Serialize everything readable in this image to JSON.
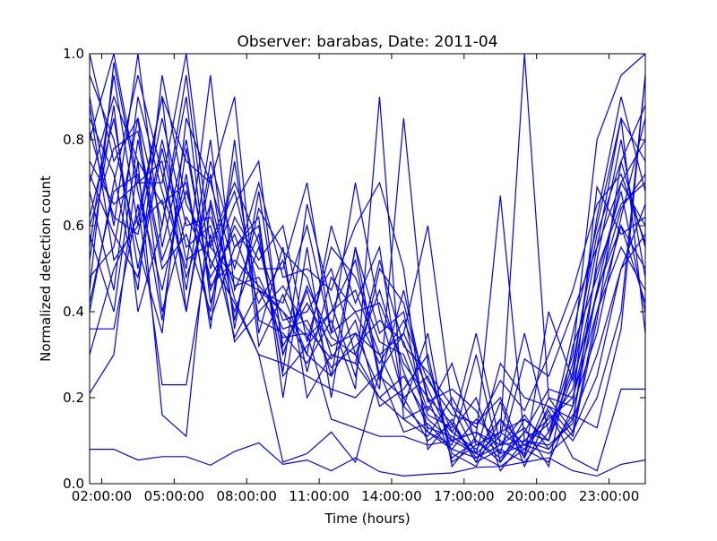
{
  "chart_data": {
    "type": "line",
    "title": "Observer: barabas, Date: 2011-04",
    "xlabel": "Time (hours)",
    "ylabel": "Normalized detection count",
    "xlim": [
      "01:30:00",
      "24:30:00"
    ],
    "ylim": [
      0,
      1.0
    ],
    "x_ticks": [
      "02:00:00",
      "05:00:00",
      "08:00:00",
      "11:00:00",
      "14:00:00",
      "17:00:00",
      "20:00:00",
      "23:00:00"
    ],
    "y_ticks": [
      "0.0",
      "0.2",
      "0.4",
      "0.6",
      "0.8",
      "1.0"
    ],
    "line_color": "#0000ff",
    "grid": false,
    "legend": "none",
    "x": [
      "01:30:00",
      "02:30:00",
      "03:30:00",
      "04:30:00",
      "05:30:00",
      "06:30:00",
      "07:30:00",
      "08:30:00",
      "09:30:00",
      "10:30:00",
      "11:30:00",
      "12:30:00",
      "13:30:00",
      "14:30:00",
      "15:30:00",
      "16:30:00",
      "17:30:00",
      "18:30:00",
      "19:30:00",
      "20:30:00",
      "21:30:00",
      "22:30:00",
      "23:30:00",
      "24:30:00"
    ],
    "series": [
      {
        "values": [
          0.08,
          0.08,
          0.055,
          0.063,
          0.063,
          0.043,
          0.075,
          0.095,
          0.045,
          0.055,
          0.03,
          0.06,
          0.028,
          0.018,
          0.022,
          0.025,
          0.038,
          0.04,
          0.05,
          0.06,
          0.03,
          0.018,
          0.045,
          0.055
        ]
      },
      {
        "values": [
          0.21,
          0.3,
          0.75,
          0.16,
          0.11,
          0.66,
          0.43,
          0.3,
          0.05,
          0.07,
          0.12,
          0.05,
          0.26,
          0.35,
          0.6,
          0.18,
          0.07,
          0.04,
          0.08,
          0.17,
          0.06,
          0.03,
          0.22,
          0.22
        ]
      },
      {
        "values": [
          0.36,
          0.36,
          0.65,
          0.23,
          0.23,
          0.58,
          0.34,
          0.45,
          0.34,
          0.35,
          0.15,
          0.13,
          0.11,
          0.11,
          0.09,
          0.1,
          0.12,
          0.09,
          0.16,
          0.08,
          0.16,
          0.13,
          0.36,
          0.95
        ]
      },
      {
        "values": [
          0.8,
          1.0,
          0.7,
          0.7,
          1.0,
          0.55,
          0.48,
          0.45,
          0.4,
          0.3,
          0.25,
          0.35,
          0.3,
          0.18,
          0.12,
          0.08,
          0.06,
          0.09,
          0.1,
          0.15,
          0.2,
          0.45,
          0.6,
          0.5
        ]
      },
      {
        "values": [
          0.55,
          0.95,
          0.6,
          0.9,
          0.75,
          0.7,
          0.9,
          0.35,
          0.55,
          0.2,
          0.3,
          0.28,
          0.2,
          0.25,
          0.15,
          0.1,
          0.07,
          0.12,
          0.15,
          0.1,
          0.25,
          0.55,
          0.7,
          0.8
        ]
      },
      {
        "values": [
          1.0,
          0.75,
          0.85,
          0.6,
          0.95,
          0.5,
          0.65,
          0.75,
          0.3,
          0.45,
          0.25,
          0.55,
          0.25,
          0.2,
          0.1,
          0.14,
          0.05,
          0.08,
          0.05,
          0.12,
          0.3,
          0.8,
          0.95,
          1.0
        ]
      },
      {
        "values": [
          0.9,
          0.6,
          1.0,
          0.55,
          0.8,
          0.45,
          0.6,
          0.5,
          0.5,
          0.7,
          0.35,
          0.4,
          0.42,
          0.28,
          0.2,
          0.06,
          0.1,
          0.05,
          0.12,
          0.1,
          0.35,
          0.6,
          0.85,
          0.75
        ]
      },
      {
        "values": [
          0.62,
          0.85,
          0.5,
          0.8,
          0.55,
          0.6,
          0.4,
          0.55,
          0.38,
          0.4,
          0.5,
          0.3,
          0.2,
          0.15,
          0.18,
          0.12,
          0.08,
          0.15,
          0.06,
          0.18,
          0.15,
          0.45,
          0.7,
          0.6
        ]
      },
      {
        "values": [
          0.7,
          0.9,
          0.75,
          0.65,
          0.7,
          0.38,
          0.55,
          0.6,
          0.25,
          0.32,
          0.4,
          0.45,
          0.3,
          0.35,
          0.22,
          0.1,
          0.12,
          0.07,
          0.09,
          0.14,
          0.22,
          0.5,
          0.65,
          0.7
        ]
      },
      {
        "values": [
          0.48,
          0.55,
          0.85,
          0.4,
          0.62,
          0.52,
          0.42,
          0.3,
          0.28,
          0.25,
          0.22,
          0.2,
          0.26,
          0.12,
          0.14,
          0.08,
          0.15,
          0.1,
          0.07,
          0.2,
          0.12,
          0.4,
          0.55,
          0.45
        ]
      },
      {
        "values": [
          0.4,
          0.7,
          0.95,
          0.72,
          0.48,
          0.65,
          0.33,
          0.4,
          0.46,
          0.36,
          0.29,
          0.38,
          0.18,
          0.22,
          0.3,
          0.05,
          0.09,
          0.12,
          0.08,
          0.05,
          0.18,
          0.35,
          0.62,
          0.85
        ]
      },
      {
        "values": [
          0.3,
          0.5,
          0.62,
          0.9,
          0.4,
          0.75,
          0.55,
          0.62,
          0.2,
          0.55,
          0.2,
          0.55,
          0.35,
          0.4,
          0.12,
          0.09,
          0.3,
          0.05,
          0.15,
          0.1,
          0.28,
          0.58,
          0.75,
          0.55
        ]
      },
      {
        "values": [
          0.85,
          0.72,
          0.45,
          0.95,
          0.65,
          0.55,
          0.68,
          0.45,
          0.42,
          0.6,
          0.35,
          0.7,
          0.4,
          0.2,
          0.25,
          0.12,
          0.2,
          0.03,
          0.1,
          0.08,
          0.15,
          0.3,
          0.5,
          0.65
        ]
      },
      {
        "values": [
          0.95,
          0.8,
          0.55,
          0.35,
          0.85,
          0.7,
          0.5,
          0.7,
          0.48,
          0.5,
          0.45,
          0.6,
          0.7,
          0.5,
          0.08,
          0.15,
          0.05,
          0.19,
          0.04,
          0.16,
          0.1,
          0.2,
          0.4,
          0.95
        ]
      },
      {
        "values": [
          0.58,
          0.4,
          0.8,
          0.5,
          0.58,
          0.4,
          0.75,
          0.38,
          0.35,
          0.28,
          0.38,
          0.22,
          0.9,
          0.15,
          0.11,
          0.2,
          0.1,
          0.06,
          0.12,
          0.22,
          0.2,
          0.4,
          0.6,
          0.42
        ]
      },
      {
        "values": [
          0.75,
          0.65,
          0.7,
          0.75,
          0.45,
          0.8,
          0.36,
          0.68,
          0.32,
          0.42,
          0.32,
          0.35,
          0.22,
          0.85,
          0.28,
          0.07,
          0.04,
          0.15,
          0.09,
          0.07,
          0.12,
          0.25,
          0.5,
          0.58
        ]
      },
      {
        "values": [
          0.52,
          0.88,
          0.4,
          0.6,
          0.9,
          0.42,
          0.62,
          0.52,
          0.6,
          0.33,
          0.55,
          0.48,
          0.33,
          0.3,
          0.16,
          0.13,
          0.35,
          0.09,
          0.13,
          0.04,
          0.32,
          0.48,
          0.68,
          0.4
        ]
      },
      {
        "values": [
          0.68,
          0.45,
          0.9,
          0.68,
          0.5,
          0.95,
          0.45,
          0.58,
          0.26,
          0.65,
          0.42,
          0.25,
          0.5,
          0.42,
          0.2,
          0.14,
          0.06,
          0.11,
          0.35,
          0.12,
          0.26,
          0.62,
          0.9,
          0.68
        ]
      },
      {
        "values": [
          0.45,
          0.98,
          0.68,
          0.45,
          0.72,
          0.36,
          0.8,
          0.32,
          0.44,
          0.3,
          0.6,
          0.42,
          0.55,
          0.18,
          0.35,
          0.04,
          0.11,
          0.67,
          0.1,
          0.09,
          0.14,
          0.52,
          0.8,
          0.48
        ]
      },
      {
        "values": [
          0.82,
          0.62,
          0.58,
          0.85,
          0.6,
          0.62,
          0.46,
          0.48,
          0.36,
          0.38,
          0.27,
          0.32,
          0.38,
          0.33,
          0.17,
          0.28,
          0.09,
          0.12,
          1.0,
          0.2,
          0.18,
          0.69,
          0.58,
          0.62
        ]
      },
      {
        "values": [
          0.6,
          0.78,
          0.82,
          0.52,
          0.68,
          0.48,
          0.58,
          0.42,
          0.52,
          0.26,
          0.48,
          0.4,
          0.28,
          0.38,
          0.24,
          0.16,
          0.14,
          0.2,
          0.06,
          0.4,
          0.24,
          0.44,
          0.64,
          0.72
        ]
      },
      {
        "values": [
          0.72,
          0.58,
          0.48,
          0.78,
          0.52,
          0.56,
          0.7,
          0.56,
          0.3,
          0.46,
          0.34,
          0.3,
          0.45,
          0.26,
          0.13,
          0.11,
          0.07,
          0.28,
          0.2,
          0.18,
          0.11,
          0.38,
          0.75,
          0.88
        ]
      },
      {
        "values": [
          0.42,
          0.68,
          0.72,
          0.38,
          0.78,
          0.46,
          0.52,
          0.46,
          0.4,
          0.34,
          0.4,
          0.52,
          0.24,
          0.45,
          0.19,
          0.22,
          0.17,
          0.07,
          0.29,
          0.25,
          0.4,
          0.55,
          0.85,
          0.35
        ]
      },
      {
        "values": [
          0.88,
          0.52,
          0.6,
          0.66,
          0.4,
          0.72,
          0.38,
          0.64,
          0.54,
          0.48,
          0.3,
          0.28,
          0.52,
          0.32,
          0.26,
          0.18,
          0.13,
          0.24,
          0.17,
          0.3,
          0.45,
          0.65,
          0.72,
          0.56
        ]
      }
    ]
  }
}
